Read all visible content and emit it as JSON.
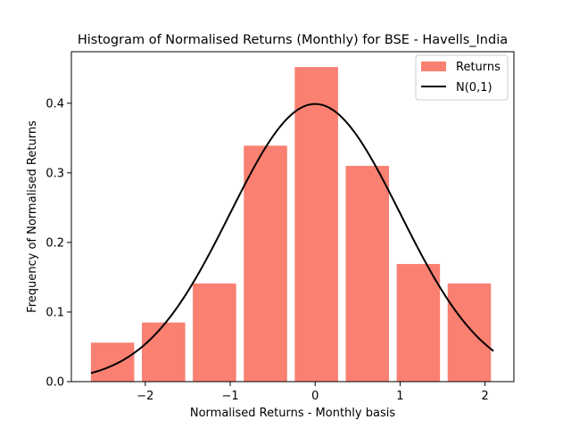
{
  "chart_data": {
    "type": "bar",
    "title": "Histogram of Normalised Returns (Monthly) for BSE - Havells_India",
    "xlabel": "Normalised Returns - Monthly basis",
    "ylabel": "Frequency of Normalised Returns",
    "xlim": [
      -2.87,
      2.34
    ],
    "ylim": [
      0,
      0.474
    ],
    "xticks": [
      -2,
      -1,
      0,
      1,
      2
    ],
    "xtick_labels": [
      "−2",
      "−1",
      "0",
      "1",
      "2"
    ],
    "yticks": [
      0.0,
      0.1,
      0.2,
      0.3,
      0.4
    ],
    "ytick_labels": [
      "0.0",
      "0.1",
      "0.2",
      "0.3",
      "0.4"
    ],
    "grid": false,
    "legend_position": "top-right",
    "series": [
      {
        "name": "Returns",
        "kind": "histogram",
        "color": "#fa8072",
        "bins": [
          {
            "x0": -2.64,
            "x1": -2.13,
            "value": 0.056
          },
          {
            "x0": -2.04,
            "x1": -1.53,
            "value": 0.085
          },
          {
            "x0": -1.44,
            "x1": -0.93,
            "value": 0.141
          },
          {
            "x0": -0.84,
            "x1": -0.33,
            "value": 0.339
          },
          {
            "x0": -0.24,
            "x1": 0.27,
            "value": 0.452
          },
          {
            "x0": 0.36,
            "x1": 0.87,
            "value": 0.31
          },
          {
            "x0": 0.96,
            "x1": 1.47,
            "value": 0.169
          },
          {
            "x0": 1.56,
            "x1": 2.07,
            "value": 0.141
          }
        ]
      },
      {
        "name": "N(0,1)",
        "kind": "line",
        "color": "#000000",
        "function": "normal_pdf",
        "mean": 0,
        "std": 1,
        "x_range": [
          -2.64,
          2.1
        ]
      }
    ]
  }
}
